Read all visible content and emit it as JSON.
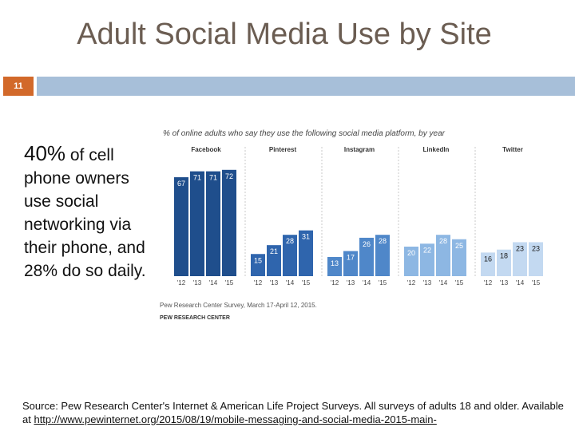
{
  "slide": {
    "title": "Adult Social Media Use by Site",
    "number": "11"
  },
  "body": {
    "stat": "40%",
    "text": " of cell phone owners use social networking via their phone, and 28% do so daily."
  },
  "source": {
    "text": "Source: Pew Research Center's Internet & American Life Project Surveys.  All surveys of adults 18 and older. Available at ",
    "link": "http://www.pewinternet.org/2015/08/19/mobile-messaging-and-social-media-2015-main-"
  },
  "chart_data": {
    "type": "bar",
    "title": "% of online adults who say they use the following social media platform, by year",
    "categories": [
      "'12",
      "'13",
      "'14",
      "'15"
    ],
    "series": [
      {
        "name": "Facebook",
        "values": [
          67,
          71,
          71,
          72
        ],
        "color": "#1f4e8c"
      },
      {
        "name": "Pinterest",
        "values": [
          15,
          21,
          28,
          31
        ],
        "color": "#2f65ad"
      },
      {
        "name": "Instagram",
        "values": [
          13,
          17,
          26,
          28
        ],
        "color": "#4f87c9"
      },
      {
        "name": "LinkedIn",
        "values": [
          20,
          22,
          28,
          25
        ],
        "color": "#8db7e3"
      },
      {
        "name": "Twitter",
        "values": [
          16,
          18,
          23,
          23
        ],
        "color": "#c3d9f1"
      }
    ],
    "label_colors": [
      "#ffffff",
      "#ffffff",
      "#ffffff",
      "#ffffff",
      "#1a1a1a"
    ],
    "ylim": [
      0,
      80
    ],
    "notes": [
      "Pew Research Center Survey, March 17-April 12, 2015.",
      "PEW RESEARCH CENTER"
    ]
  }
}
